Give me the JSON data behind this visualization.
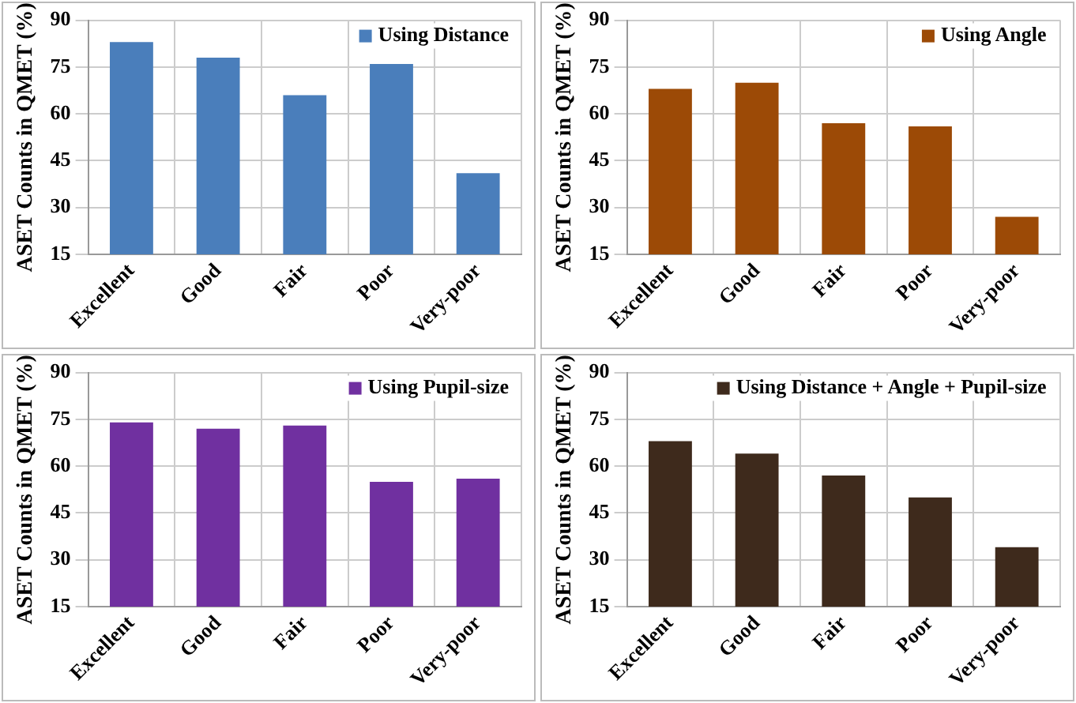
{
  "chart_data": [
    {
      "type": "bar",
      "ylabel": "ASET Counts in QMET (%)",
      "categories": [
        "Excellent",
        "Good",
        "Fair",
        "Poor",
        "Very-poor"
      ],
      "series": [
        {
          "name": "Using Distance",
          "color": "#4a7ebb",
          "values": [
            83,
            78,
            66,
            76,
            41
          ]
        }
      ],
      "ylim": [
        15,
        90
      ],
      "yticks": [
        15,
        30,
        45,
        60,
        75,
        90
      ],
      "grid": true,
      "legend": "top right"
    },
    {
      "type": "bar",
      "ylabel": "ASET Counts in QMET (%)",
      "categories": [
        "Excellent",
        "Good",
        "Fair",
        "Poor",
        "Very-poor"
      ],
      "series": [
        {
          "name": "Using Angle",
          "color": "#9c4a06",
          "values": [
            68,
            70,
            57,
            56,
            27
          ]
        }
      ],
      "ylim": [
        15,
        90
      ],
      "yticks": [
        15,
        30,
        45,
        60,
        75,
        90
      ],
      "grid": true,
      "legend": "top right"
    },
    {
      "type": "bar",
      "ylabel": "ASET Counts in QMET (%)",
      "categories": [
        "Excellent",
        "Good",
        "Fair",
        "Poor",
        "Very-poor"
      ],
      "series": [
        {
          "name": "Using Pupil-size",
          "color": "#7030a0",
          "values": [
            74,
            72,
            73,
            55,
            56
          ]
        }
      ],
      "ylim": [
        15,
        90
      ],
      "yticks": [
        15,
        30,
        45,
        60,
        75,
        90
      ],
      "grid": true,
      "legend": "top right"
    },
    {
      "type": "bar",
      "ylabel": "ASET Counts in QMET (%)",
      "categories": [
        "Excellent",
        "Good",
        "Fair",
        "Poor",
        "Very-poor"
      ],
      "series": [
        {
          "name": "Using Distance + Angle + Pupil-size",
          "color": "#3e2a1c",
          "values": [
            68,
            64,
            57,
            50,
            34
          ]
        }
      ],
      "ylim": [
        15,
        90
      ],
      "yticks": [
        15,
        30,
        45,
        60,
        75,
        90
      ],
      "grid": true,
      "legend": "top right"
    }
  ]
}
